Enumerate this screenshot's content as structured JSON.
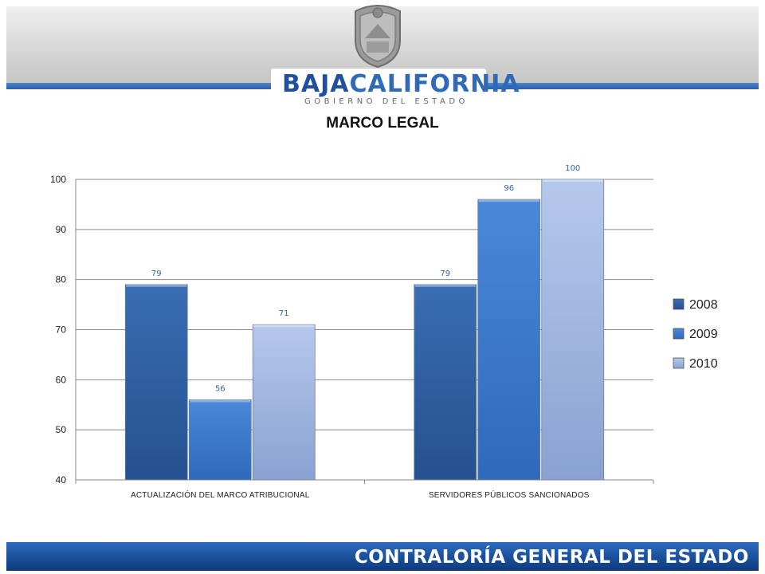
{
  "header": {
    "logo_part1": "BAJA",
    "logo_part2": "CALIFORNIA",
    "logo_subtitle": "GOBIERNO DEL ESTADO"
  },
  "footer": {
    "text": "CONTRALORÍA GENERAL DEL ESTADO"
  },
  "colors": {
    "header_stripe": "#2b5fa8",
    "footer": "#1a4f9a",
    "series_2008": "#2f62a6",
    "series_2009": "#3a7ad0",
    "series_2010": "#a8bde6"
  },
  "chart_data": {
    "type": "bar",
    "title": "MARCO LEGAL",
    "categories": [
      "ACTUALIZACIÓN DEL MARCO ATRIBUCIONAL",
      "SERVIDORES PÚBLICOS SANCIONADOS"
    ],
    "series": [
      {
        "name": "2008",
        "values": [
          79,
          79
        ],
        "color": "#2f62a6"
      },
      {
        "name": "2009",
        "values": [
          56,
          96
        ],
        "color": "#3a7ad0"
      },
      {
        "name": "2010",
        "values": [
          71,
          100
        ],
        "color": "#a8bde6"
      }
    ],
    "ylim": [
      40,
      100
    ],
    "yticks": [
      40,
      50,
      60,
      70,
      80,
      90,
      100
    ],
    "grid": true,
    "legend": "right",
    "data_labels": true
  }
}
